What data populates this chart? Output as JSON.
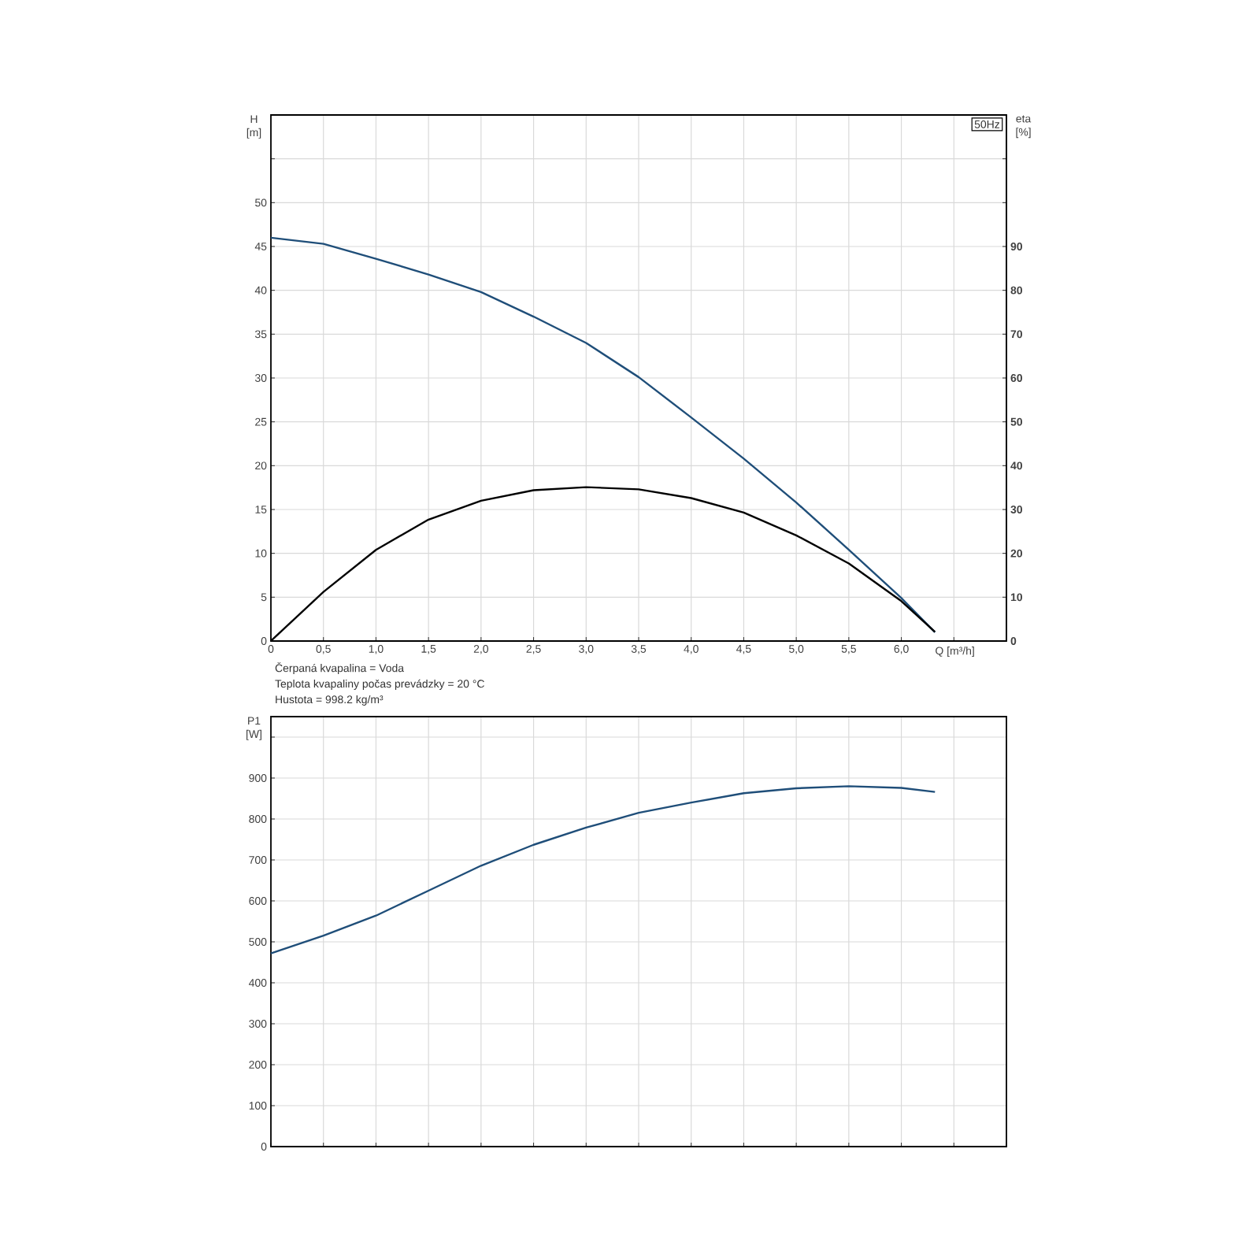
{
  "chart_data": [
    {
      "type": "line",
      "x": [
        0,
        0.5,
        1.0,
        1.5,
        2.0,
        2.5,
        3.0,
        3.5,
        4.0,
        4.5,
        5.0,
        5.5,
        6.0,
        6.32
      ],
      "series": [
        {
          "color": "#1f4e79",
          "values": [
            46,
            45.3,
            43.6,
            41.8,
            39.8,
            37.0,
            34.0,
            30.1,
            25.5,
            20.8,
            15.8,
            10.4,
            4.9,
            1.0
          ]
        },
        {
          "color": "#000000",
          "axis": "y2",
          "values": [
            0,
            11.2,
            20.8,
            27.7,
            32,
            34.4,
            35.1,
            34.6,
            32.6,
            29.3,
            24.1,
            17.7,
            9.1,
            2.1
          ]
        }
      ],
      "xlabel": "Q [m³/h]",
      "ylabel": "H [m]",
      "y2label": "eta [%]",
      "xlim": [
        0,
        7
      ],
      "xticks": [
        0,
        {
          "value": 0.5,
          "label": "0,5"
        },
        {
          "value": 1.0,
          "label": "1,0"
        },
        {
          "value": 1.5,
          "label": "1,5"
        },
        {
          "value": 2.0,
          "label": "2,0"
        },
        {
          "value": 2.5,
          "label": "2,5"
        },
        {
          "value": 3.0,
          "label": "3,0"
        },
        {
          "value": 3.5,
          "label": "3,5"
        },
        {
          "value": 4.0,
          "label": "4,0"
        },
        {
          "value": 4.5,
          "label": "4,5"
        },
        {
          "value": 5.0,
          "label": "5,0"
        },
        {
          "value": 5.5,
          "label": "5,5"
        },
        {
          "value": 6.0,
          "label": "6,0"
        },
        {
          "value": 6.5,
          "label": null
        },
        {
          "value": 7,
          "label": null
        }
      ],
      "ylim": [
        0,
        60
      ],
      "yticks": [
        0,
        5,
        10,
        15,
        20,
        25,
        30,
        35,
        40,
        45,
        50,
        {
          "value": 55,
          "label": null
        },
        {
          "value": 60,
          "label": null
        }
      ],
      "y2lim": [
        0,
        120
      ],
      "y2ticks": [
        0,
        10,
        20,
        30,
        40,
        50,
        60,
        70,
        80,
        90,
        {
          "value": 100,
          "label": null
        },
        {
          "value": 110,
          "label": null
        },
        {
          "value": 120,
          "label": null
        }
      ],
      "grid": true,
      "annotations": [
        "50Hz",
        "Čerpaná kvapalina = Voda",
        "Teplota kvapaliny počas prevádzky = 20 °C",
        "Hustota = 998.2 kg/m³"
      ]
    },
    {
      "type": "line",
      "x": [
        0,
        0.5,
        1.0,
        1.5,
        2.0,
        2.5,
        3.0,
        3.5,
        4.0,
        4.5,
        5.0,
        5.5,
        6.0,
        6.32
      ],
      "series": [
        {
          "color": "#1f4e79",
          "values": [
            472,
            515,
            564,
            625,
            686,
            737,
            779,
            815,
            840,
            863,
            875,
            880,
            876,
            866
          ]
        }
      ],
      "ylabel": "P1 [W]",
      "xlim": [
        0,
        7
      ],
      "xticks": [
        {
          "value": 0,
          "label": null
        },
        {
          "value": 0.5,
          "label": null
        },
        {
          "value": 1.0,
          "label": null
        },
        {
          "value": 1.5,
          "label": null
        },
        {
          "value": 2.0,
          "label": null
        },
        {
          "value": 2.5,
          "label": null
        },
        {
          "value": 3.0,
          "label": null
        },
        {
          "value": 3.5,
          "label": null
        },
        {
          "value": 4.0,
          "label": null
        },
        {
          "value": 4.5,
          "label": null
        },
        {
          "value": 5.0,
          "label": null
        },
        {
          "value": 5.5,
          "label": null
        },
        {
          "value": 6.0,
          "label": null
        },
        {
          "value": 6.5,
          "label": null
        },
        {
          "value": 7,
          "label": null
        }
      ],
      "ylim": [
        0,
        1050
      ],
      "yticks": [
        0,
        100,
        200,
        300,
        400,
        500,
        600,
        700,
        800,
        900,
        {
          "value": 1000,
          "label": null
        }
      ],
      "tick_labels": "y",
      "grid": true
    }
  ]
}
